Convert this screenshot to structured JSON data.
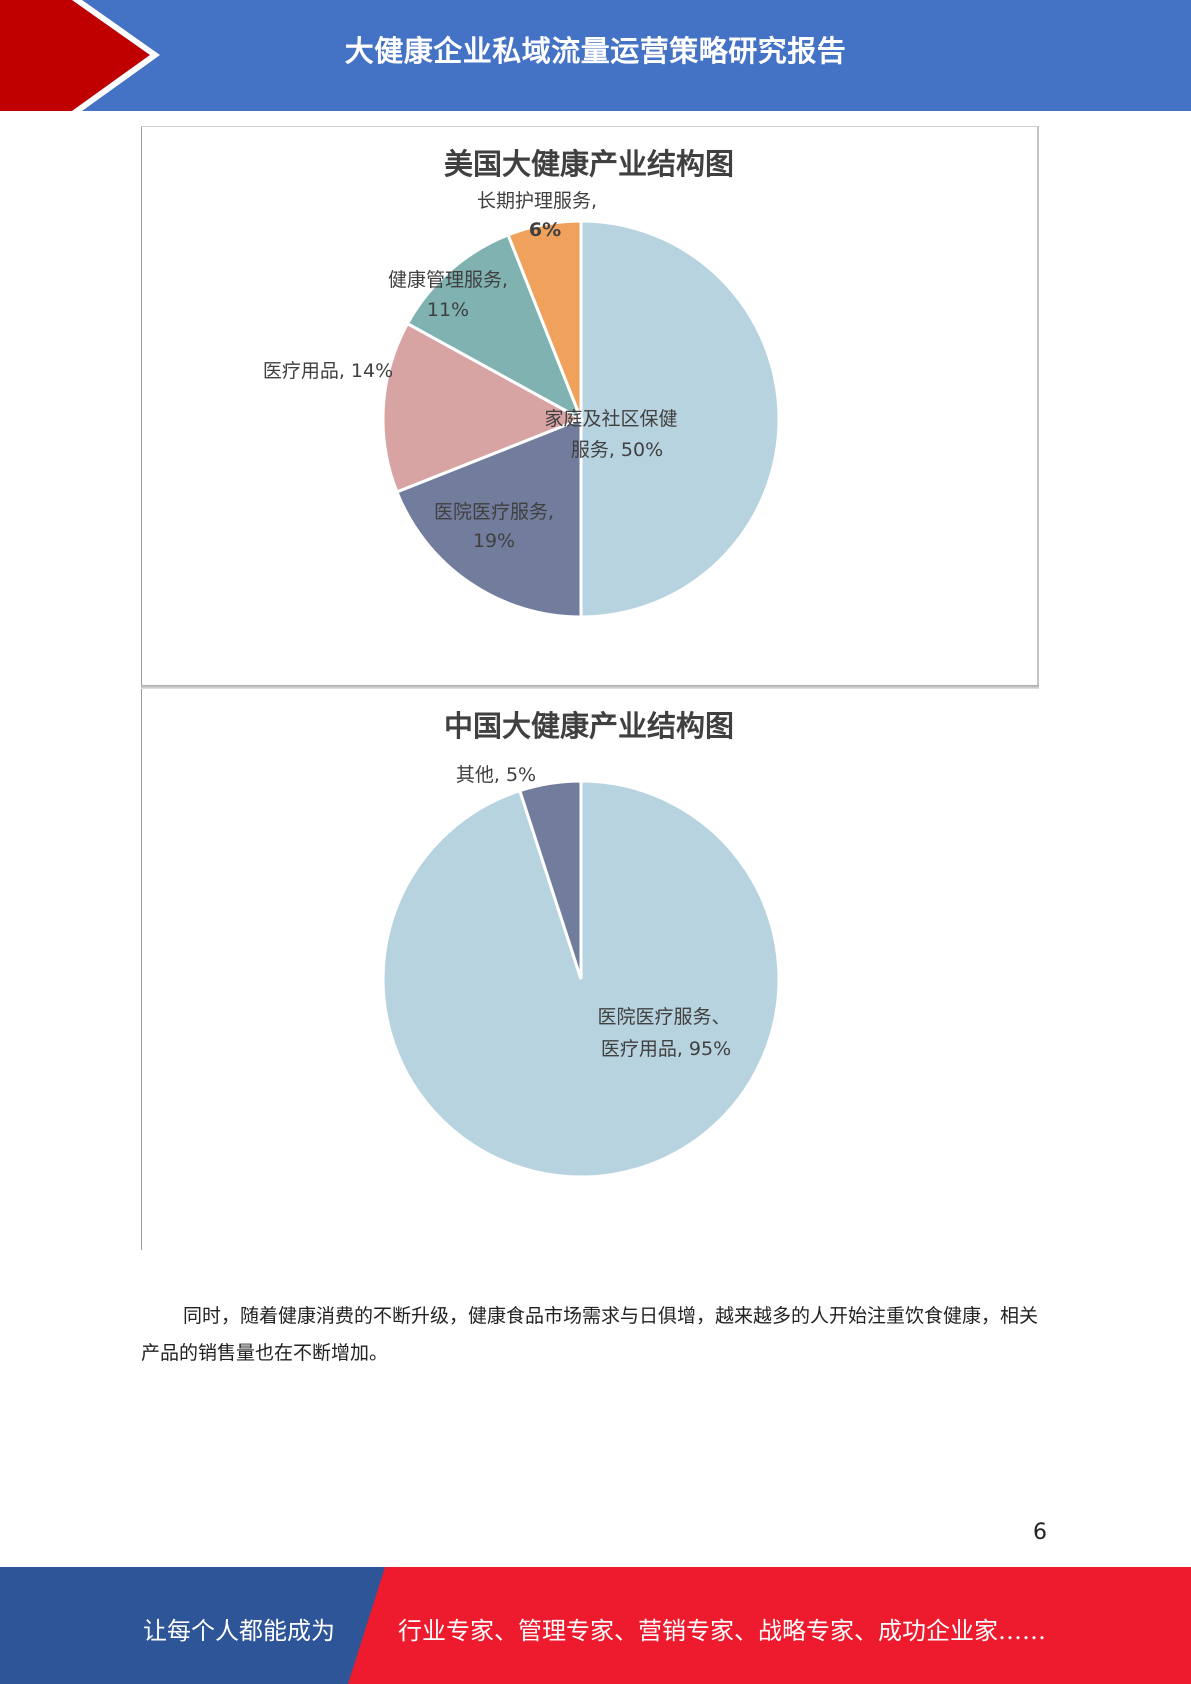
{
  "header": {
    "title": "大健康企业私域流量运营策略研究报告",
    "colors": {
      "band": "#4472c4",
      "arrow": "#c00000"
    }
  },
  "chart_data": [
    {
      "type": "pie",
      "title": "美国大健康产业结构图",
      "slices": [
        {
          "label": "家庭及社区保健服务",
          "value": 50,
          "color": "#b8d3e0"
        },
        {
          "label": "医院医疗服务",
          "value": 19,
          "color": "#727d9e"
        },
        {
          "label": "医疗用品",
          "value": 14,
          "color": "#d7a3a3"
        },
        {
          "label": "健康管理服务",
          "value": 11,
          "color": "#7fb2b1"
        },
        {
          "label": "长期护理服务",
          "value": 6,
          "color": "#f0a25c"
        }
      ]
    },
    {
      "type": "pie",
      "title": "中国大健康产业结构图",
      "slices": [
        {
          "label": "医院医疗服务、医疗用品",
          "value": 95,
          "color": "#b8d3e0"
        },
        {
          "label": "其他",
          "value": 5,
          "color": "#727d9e"
        }
      ]
    }
  ],
  "chart_labels": {
    "us": {
      "home_line1": "家庭及社区保健",
      "home_line2": "服务, 50%",
      "hospital_line1": "医院医疗服务,",
      "hospital_line2": "19%",
      "supplies": "医疗用品, 14%",
      "mgmt_line1": "健康管理服务,",
      "mgmt_line2": "11%",
      "longterm_line1": "长期护理服务,",
      "longterm_line2": "6%"
    },
    "cn": {
      "main_line1": "医院医疗服务、",
      "main_line2": "医疗用品, 95%",
      "other": "其他, 5%"
    }
  },
  "body": {
    "paragraph": "同时，随着健康消费的不断升级，健康食品市场需求与日俱增，越来越多的人开始注重饮食健康，相关产品的销售量也在不断增加。"
  },
  "page_number": "6",
  "footer": {
    "left_text": "让每个人都能成为",
    "right_text": "行业专家、管理专家、营销专家、战略专家、成功企业家……",
    "colors": {
      "left": "#2e5597",
      "right": "#ee1b2e"
    }
  }
}
